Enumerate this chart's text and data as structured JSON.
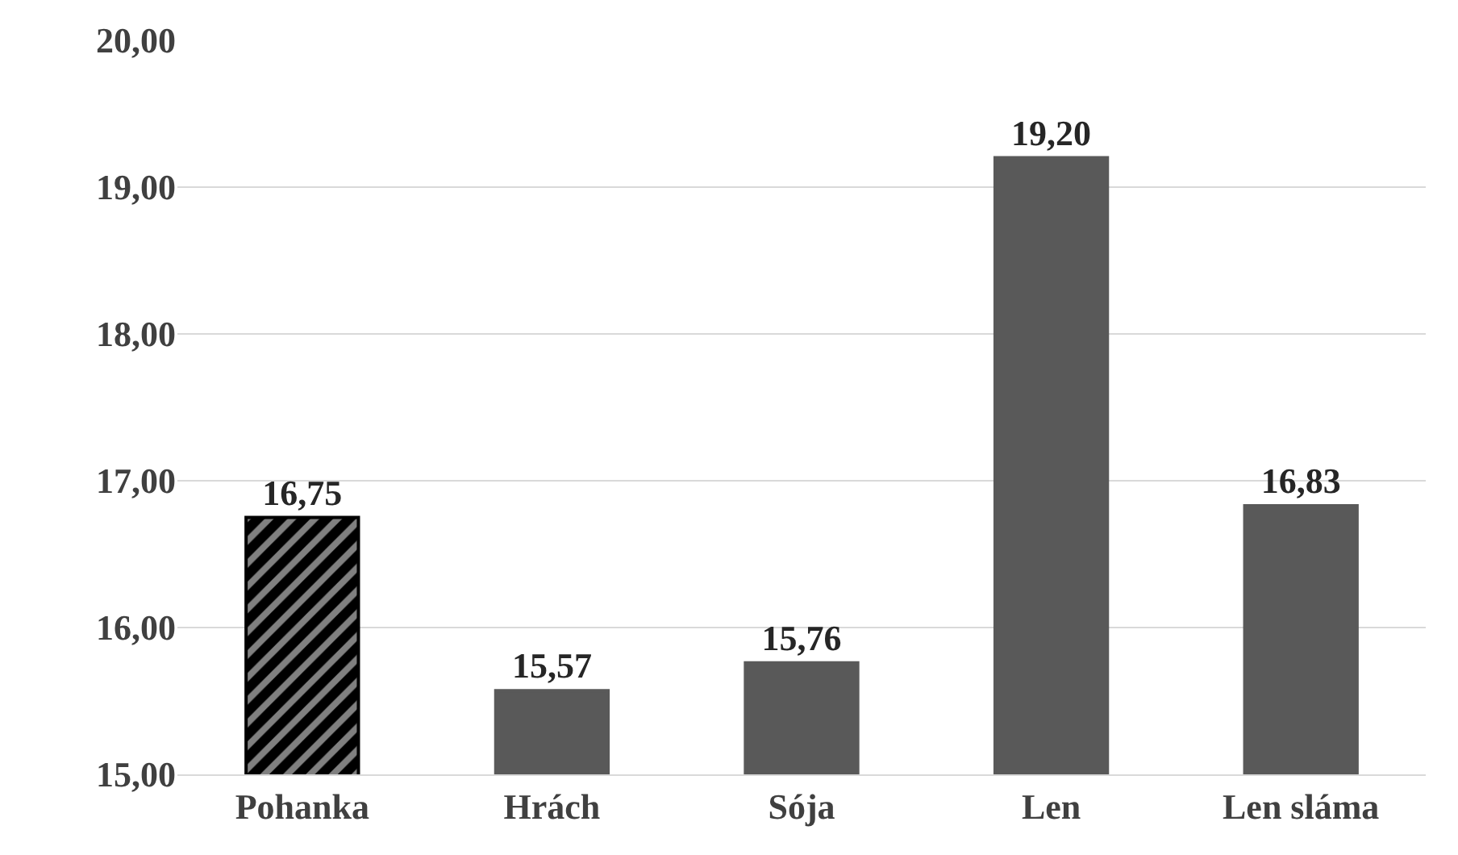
{
  "chart_data": {
    "type": "bar",
    "categories": [
      "Pohanka",
      "Hrách",
      "Sója",
      "Len",
      "Len sláma"
    ],
    "values": [
      16.75,
      15.57,
      15.76,
      19.2,
      16.83
    ],
    "value_labels": [
      "16,75",
      "15,57",
      "15,76",
      "19,20",
      "16,83"
    ],
    "colors": [
      "#000000",
      "#595959",
      "#595959",
      "#595959",
      "#595959"
    ],
    "ylim": [
      15,
      20
    ],
    "yticks": [
      {
        "value": 15,
        "label": "15,00"
      },
      {
        "value": 16,
        "label": "16,00"
      },
      {
        "value": 17,
        "label": "17,00"
      },
      {
        "value": 18,
        "label": "18,00"
      },
      {
        "value": 19,
        "label": "19,00"
      },
      {
        "value": 20,
        "label": "20,00"
      }
    ],
    "grid": "y"
  }
}
